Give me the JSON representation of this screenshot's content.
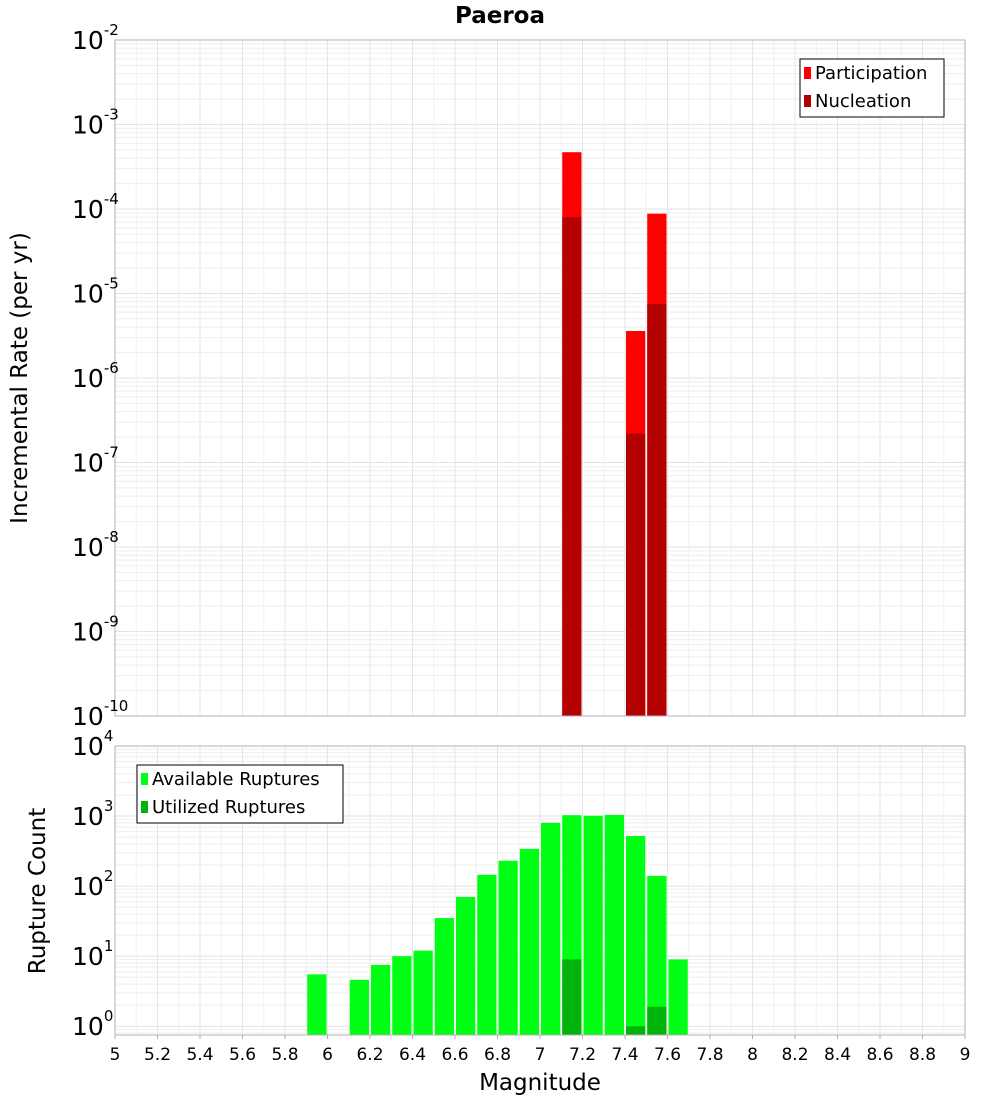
{
  "chart_data": [
    {
      "type": "bar",
      "title": "Paeroa",
      "ylabel": "Incremental Rate (per yr)",
      "xlabel": "",
      "yscale": "log",
      "ylim": [
        1e-10,
        0.01
      ],
      "xlim": [
        5,
        9
      ],
      "grid": true,
      "legend_placement": "top-right",
      "ytick_exponents": [
        "-10",
        "-9",
        "-8",
        "-7",
        "-6",
        "-5",
        "-4",
        "-3",
        "-2"
      ],
      "ytick_base": "10",
      "bar_width": 0.1,
      "series": [
        {
          "name": "Participation",
          "color": "#ff0000",
          "points": [
            {
              "x": 7.15,
              "y": 0.00047
            },
            {
              "x": 7.45,
              "y": 3.6e-06
            },
            {
              "x": 7.55,
              "y": 8.8e-05
            }
          ]
        },
        {
          "name": "Nucleation",
          "color": "#b30000",
          "points": [
            {
              "x": 7.15,
              "y": 8e-05
            },
            {
              "x": 7.45,
              "y": 2.2e-07
            },
            {
              "x": 7.55,
              "y": 7.5e-06
            }
          ]
        }
      ]
    },
    {
      "type": "bar",
      "title": "",
      "ylabel": "Rupture Count",
      "xlabel": "Magnitude",
      "yscale": "log",
      "ylim": [
        0.75,
        10000
      ],
      "xlim": [
        5,
        9
      ],
      "grid": true,
      "legend_placement": "top-left",
      "ytick_exponents": [
        "0",
        "1",
        "2",
        "3",
        "4"
      ],
      "ytick_base": "10",
      "xticks": [
        "5",
        "5.2",
        "5.4",
        "5.6",
        "5.8",
        "6",
        "6.2",
        "6.4",
        "6.6",
        "6.8",
        "7",
        "7.2",
        "7.4",
        "7.6",
        "7.8",
        "8",
        "8.2",
        "8.4",
        "8.6",
        "8.8",
        "9"
      ],
      "bar_width": 0.1,
      "series": [
        {
          "name": "Available Ruptures",
          "color": "#00ff14",
          "points": [
            {
              "x": 5.95,
              "y": 5.5
            },
            {
              "x": 6.15,
              "y": 4.6
            },
            {
              "x": 6.25,
              "y": 7.5
            },
            {
              "x": 6.35,
              "y": 10
            },
            {
              "x": 6.45,
              "y": 12
            },
            {
              "x": 6.55,
              "y": 35
            },
            {
              "x": 6.65,
              "y": 70
            },
            {
              "x": 6.75,
              "y": 145
            },
            {
              "x": 6.85,
              "y": 230
            },
            {
              "x": 6.95,
              "y": 340
            },
            {
              "x": 7.05,
              "y": 800
            },
            {
              "x": 7.15,
              "y": 1030
            },
            {
              "x": 7.25,
              "y": 1010
            },
            {
              "x": 7.35,
              "y": 1040
            },
            {
              "x": 7.45,
              "y": 520
            },
            {
              "x": 7.55,
              "y": 140
            },
            {
              "x": 7.65,
              "y": 9
            }
          ]
        },
        {
          "name": "Utilized Ruptures",
          "color": "#00b30a",
          "points": [
            {
              "x": 7.15,
              "y": 9
            },
            {
              "x": 7.45,
              "y": 1
            },
            {
              "x": 7.55,
              "y": 1.9
            }
          ]
        }
      ]
    }
  ]
}
